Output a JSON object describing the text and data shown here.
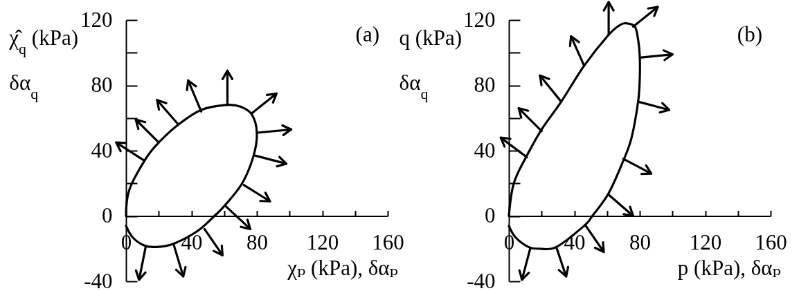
{
  "chart_data": [
    {
      "type": "line",
      "title": "(a)",
      "xlabel": "χₚ (kPa), δαₚ",
      "ylabel": "χ̂$_{q}$ (kPa)\nδα$_{q}$",
      "xlim": [
        0,
        160
      ],
      "ylim": [
        -40,
        120
      ],
      "xticks": [
        0,
        {
          "value": 20,
          "label": null
        },
        40,
        {
          "value": 60,
          "label": null
        },
        80,
        {
          "value": 100,
          "label": null
        },
        120,
        {
          "value": 140,
          "label": null
        },
        160
      ],
      "yticks": [
        -40,
        0,
        {
          "value": 20,
          "label": null
        },
        40,
        {
          "value": 60,
          "label": null
        },
        80,
        {
          "value": 100,
          "label": null
        },
        120
      ],
      "grid": false,
      "legend": false,
      "series": [
        {
          "color": "#000000",
          "x": [
            0,
            2,
            12,
            20,
            32,
            46,
            61,
            70,
            77,
            80,
            78,
            71,
            60,
            54,
            44,
            29,
            18,
            11,
            4,
            0
          ],
          "values": [
            0,
            16,
            35,
            45,
            56,
            65,
            68,
            67,
            62,
            51,
            37,
            20,
            6,
            0,
            -9,
            -17,
            -19,
            -18,
            -13,
            -6
          ]
        }
      ]
    },
    {
      "type": "line",
      "title": "(b)",
      "xlabel": "p (kPa), δαₚ",
      "ylabel": "q (kPa)\nδα$_{q}$",
      "xlim": [
        0,
        160
      ],
      "ylim": [
        -40,
        120
      ],
      "xticks": [
        0,
        {
          "value": 20,
          "label": null
        },
        40,
        {
          "value": 60,
          "label": null
        },
        80,
        {
          "value": 100,
          "label": null
        },
        120,
        {
          "value": 140,
          "label": null
        },
        160
      ],
      "yticks": [
        -40,
        0,
        {
          "value": 20,
          "label": null
        },
        40,
        {
          "value": 60,
          "label": null
        },
        80,
        {
          "value": 100,
          "label": null
        },
        120
      ],
      "grid": false,
      "legend": false,
      "series": [
        {
          "color": "#000000",
          "x": [
            0,
            3,
            11,
            20,
            32,
            46,
            61,
            68,
            72,
            77,
            79,
            80,
            80,
            79,
            75,
            70,
            61,
            51,
            46,
            29,
            18,
            12,
            4,
            0
          ],
          "values": [
            0,
            20,
            37,
            53,
            70,
            92,
            111,
            117,
            118,
            116,
            108,
            98,
            84,
            70,
            48,
            34,
            14,
            0,
            -6,
            -19,
            -20,
            -19,
            -13,
            -6
          ]
        }
      ]
    }
  ]
}
